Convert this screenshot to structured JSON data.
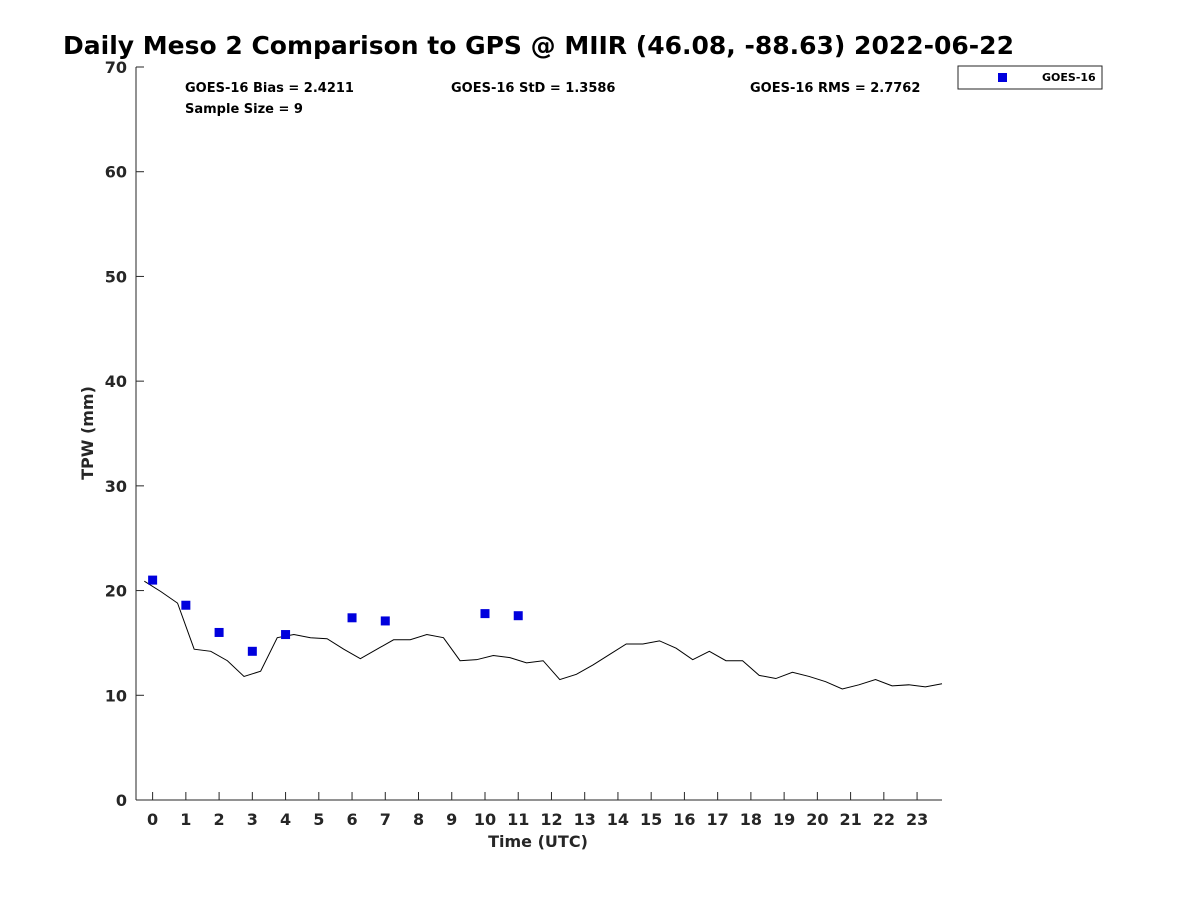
{
  "chart_data": {
    "type": "scatter",
    "title": "Daily Meso 2 Comparison to GPS @ MIIR (46.08, -88.63) 2022-06-22",
    "xlabel": "Time (UTC)",
    "ylabel": "TPW (mm)",
    "xlim": [
      -0.5,
      23.75
    ],
    "ylim": [
      0,
      70
    ],
    "x_ticks": [
      0,
      1,
      2,
      3,
      4,
      5,
      6,
      7,
      8,
      9,
      10,
      11,
      12,
      13,
      14,
      15,
      16,
      17,
      18,
      19,
      20,
      21,
      22,
      23
    ],
    "y_ticks": [
      0,
      10,
      20,
      30,
      40,
      50,
      60,
      70
    ],
    "stats": {
      "bias": "GOES-16 Bias = 2.4211",
      "std": "GOES-16 StD = 1.3586",
      "rms": "GOES-16 RMS = 2.7762",
      "sample": "Sample Size = 9"
    },
    "legend": {
      "position": "top-right",
      "entry": "GOES-16"
    },
    "series": [
      {
        "name": "GOES-16",
        "kind": "scatter",
        "color": "#0000dd",
        "x": [
          0,
          1,
          2,
          3,
          4,
          6,
          7,
          10,
          11
        ],
        "y": [
          21.0,
          18.6,
          16.0,
          14.2,
          15.8,
          17.4,
          17.1,
          17.8,
          17.6
        ]
      },
      {
        "kind": "line",
        "color": "#000000",
        "x": [
          -0.25,
          0.25,
          0.75,
          1.25,
          1.75,
          2.25,
          2.75,
          3.25,
          3.75,
          4.25,
          4.75,
          5.25,
          5.75,
          6.25,
          6.75,
          7.25,
          7.75,
          8.25,
          8.75,
          9.25,
          9.75,
          10.25,
          10.75,
          11.25,
          11.75,
          12.25,
          12.75,
          13.25,
          13.75,
          14.25,
          14.75,
          15.25,
          15.75,
          16.25,
          16.75,
          17.25,
          17.75,
          18.25,
          18.75,
          19.25,
          19.75,
          20.25,
          20.75,
          21.25,
          21.75,
          22.25,
          22.75,
          23.25,
          23.75
        ],
        "y": [
          20.9,
          19.9,
          18.8,
          14.4,
          14.2,
          13.3,
          11.8,
          12.3,
          15.5,
          15.8,
          15.5,
          15.4,
          14.4,
          13.5,
          14.4,
          15.3,
          15.3,
          15.8,
          15.5,
          13.3,
          13.4,
          13.8,
          13.6,
          13.1,
          13.3,
          11.5,
          12.0,
          12.9,
          13.9,
          14.9,
          14.9,
          15.2,
          14.5,
          13.4,
          14.2,
          13.3,
          13.3,
          11.9,
          11.6,
          12.2,
          11.8,
          11.3,
          10.6,
          11.0,
          11.5,
          10.9,
          11.0,
          10.8,
          11.1
        ]
      }
    ]
  }
}
